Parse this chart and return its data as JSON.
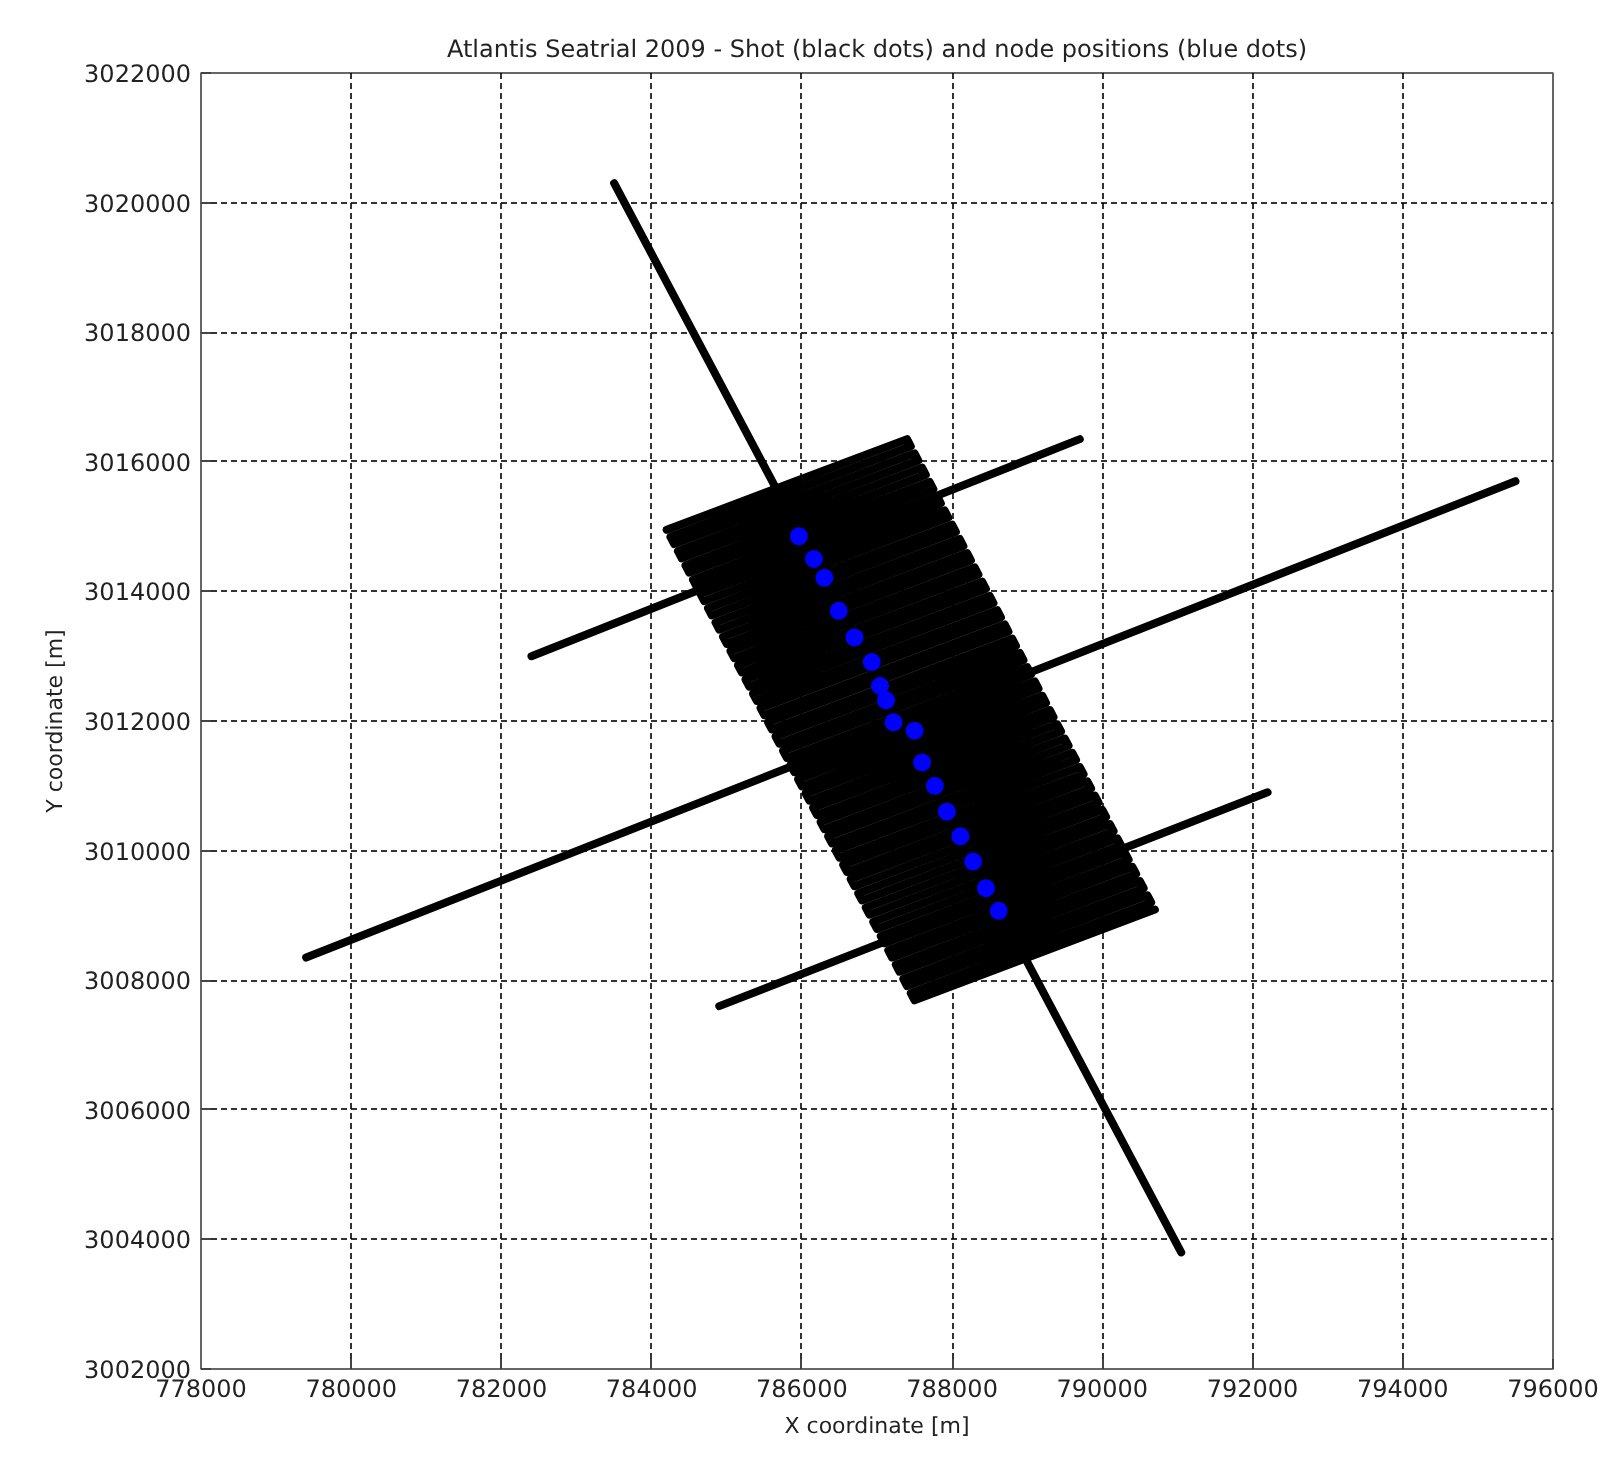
{
  "chart_data": {
    "type": "scatter",
    "title": "Atlantis Seatrial 2009 - Shot (black dots) and node positions (blue dots)",
    "xlabel": "X coordinate [m]",
    "ylabel": "Y coordinate [m]",
    "xlim": [
      778000,
      796000
    ],
    "ylim": [
      3002000,
      3022000
    ],
    "xticks": [
      778000,
      780000,
      782000,
      784000,
      786000,
      788000,
      790000,
      792000,
      794000,
      796000
    ],
    "yticks": [
      3002000,
      3004000,
      3006000,
      3008000,
      3010000,
      3012000,
      3014000,
      3016000,
      3018000,
      3020000,
      3022000
    ],
    "grid": true,
    "series": [
      {
        "type": "line",
        "color": "#000000",
        "x": [
          784200,
          787400,
          787450,
          784250,
          784300,
          787500,
          787550,
          784350,
          784400,
          787600,
          787650,
          784450,
          784500,
          787700,
          787750,
          784550,
          784600,
          787800,
          787850,
          784650,
          784700,
          787900,
          787950,
          784750,
          784800,
          788000,
          788050,
          784850,
          784900,
          788100,
          788150,
          784950,
          785000,
          788200,
          788250,
          785050,
          785100,
          788300,
          788350,
          785150,
          785200,
          788400,
          788450,
          785250,
          785300,
          788500,
          788550,
          785350,
          785400,
          788600,
          788650,
          785450,
          785500,
          788700,
          788750,
          785550,
          785600,
          788800,
          788850,
          785650,
          785700,
          788900,
          788950,
          785750,
          785800,
          789000,
          789050,
          785850,
          785900,
          789100,
          789150,
          785950,
          786000,
          789200,
          789250,
          786050,
          786100,
          789300,
          789350,
          786150,
          786200,
          789400,
          789450,
          786250,
          786300,
          789500,
          789550,
          786350,
          786400,
          789600,
          789650,
          786450,
          786500,
          789700,
          789750,
          786550,
          786600,
          789800,
          789850,
          786650,
          786700,
          789900,
          789950,
          786750,
          786800,
          790000,
          790050,
          786850,
          786900,
          790100,
          790150,
          786950,
          787000,
          790200,
          790250,
          787050,
          787100,
          790300,
          790350,
          787150,
          787200,
          790400,
          790450,
          787250,
          787300,
          790500,
          790550,
          787350,
          787400,
          790600,
          790650,
          787450,
          787500,
          790700
        ],
        "values": [
          3014950,
          3016350,
          3016240,
          3014840,
          3014730,
          3016130,
          3016020,
          3014620,
          3014510,
          3015910,
          3015800,
          3014400,
          3014290,
          3015690,
          3015580,
          3014180,
          3014070,
          3015470,
          3015360,
          3013960,
          3013850,
          3015250,
          3015140,
          3013740,
          3013630,
          3015030,
          3014920,
          3013520,
          3013410,
          3014810,
          3014700,
          3013300,
          3013190,
          3014590,
          3014480,
          3013080,
          3012970,
          3014370,
          3014260,
          3012860,
          3012750,
          3014150,
          3014040,
          3012640,
          3012530,
          3013930,
          3013820,
          3012420,
          3012310,
          3013710,
          3013600,
          3012200,
          3012090,
          3013490,
          3013380,
          3011980,
          3011870,
          3013270,
          3013160,
          3011760,
          3011650,
          3013050,
          3012940,
          3011540,
          3011430,
          3012830,
          3012720,
          3011320,
          3011210,
          3012610,
          3012500,
          3011100,
          3010990,
          3012390,
          3012280,
          3010880,
          3010770,
          3012170,
          3012060,
          3010660,
          3010550,
          3011950,
          3011840,
          3010440,
          3010330,
          3011730,
          3011620,
          3010220,
          3010110,
          3011510,
          3011400,
          3010000,
          3009890,
          3011290,
          3011180,
          3009780,
          3009670,
          3011070,
          3010960,
          3009560,
          3009450,
          3010850,
          3010740,
          3009340,
          3009230,
          3010630,
          3010520,
          3009120,
          3009010,
          3010410,
          3010300,
          3008900,
          3008790,
          3010190,
          3010080,
          3008680,
          3008570,
          3009970,
          3009860,
          3008460,
          3008350,
          3009750,
          3009640,
          3008240,
          3008130,
          3009530,
          3009420,
          3008020,
          3007910,
          3009310,
          3009200,
          3007800,
          3007690,
          3009090
        ]
      },
      {
        "type": "line",
        "color": "#000000",
        "x": [
          783500,
          791050
        ],
        "values": [
          3020300,
          3003800
        ]
      },
      {
        "type": "line",
        "color": "#000000",
        "x": [
          782400,
          789700
        ],
        "values": [
          3013000,
          3016350
        ]
      },
      {
        "type": "line",
        "color": "#000000",
        "x": [
          779400,
          795500
        ],
        "values": [
          3008350,
          3015700
        ]
      },
      {
        "type": "line",
        "color": "#000000",
        "x": [
          784900,
          792200
        ],
        "values": [
          3007600,
          3010900
        ]
      },
      {
        "color": "#0000ff",
        "marker": "circle",
        "x": [
          785960,
          786160,
          786300,
          786490,
          786700,
          786930,
          787040,
          787120,
          787220,
          787500,
          787600,
          787770,
          787930,
          788110,
          788280,
          788450,
          788620
        ],
        "values": [
          3014850,
          3014500,
          3014210,
          3013700,
          3013290,
          3012910,
          3012540,
          3012320,
          3011980,
          3011850,
          3011360,
          3011000,
          3010600,
          3010220,
          3009830,
          3009420,
          3009070
        ]
      }
    ]
  }
}
